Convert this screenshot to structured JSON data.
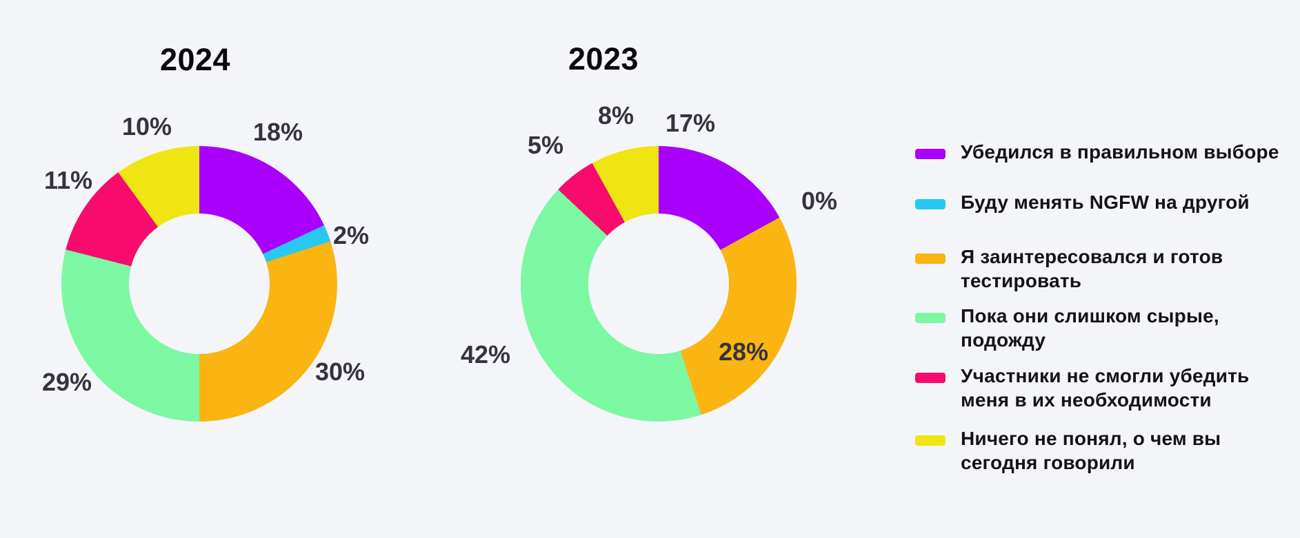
{
  "page": {
    "background": "#F4F5F9",
    "title_color": "#0B0B0E",
    "slice_label_color": "#34333E",
    "legend_text_color": "#131318"
  },
  "palette": [
    "#A800FA",
    "#29C7F2",
    "#FAB512",
    "#7DF8A2",
    "#F70C6E",
    "#EEE512"
  ],
  "categories": [
    "Убедился в правильном выборе",
    "Буду менять NGFW на другой",
    "Я заинтересовался и готов тестировать",
    "Пока они слишком сырые, подожду",
    "Участники не смогли убедить меня в их необходимости",
    "Ничего не понял, о чем вы сегодня говорили"
  ],
  "chart_data": [
    {
      "type": "pie",
      "variant": "donut",
      "title": "2024",
      "categories": [
        "Убедился в правильном выборе",
        "Буду менять NGFW на другой",
        "Я заинтересовался и готов тестировать",
        "Пока они слишком сырые, подожду",
        "Участники не смогли убедить меня в их необходимости",
        "Ничего не понял, о чем вы сегодня говорили"
      ],
      "values": [
        18,
        2,
        30,
        29,
        11,
        10
      ],
      "labels": [
        "18%",
        "2%",
        "30%",
        "29%",
        "11%",
        "10%"
      ],
      "colors": [
        "#A800FA",
        "#29C7F2",
        "#FAB512",
        "#7DF8A2",
        "#F70C6E",
        "#EEE512"
      ],
      "unit": "%",
      "start_angle_deg": 0,
      "direction": "clockwise",
      "inner_radius_ratio": 0.51,
      "legend_position": "right"
    },
    {
      "type": "pie",
      "variant": "donut",
      "title": "2023",
      "categories": [
        "Убедился в правильном выборе",
        "Буду менять NGFW на другой",
        "Я заинтересовался и готов тестировать",
        "Пока они слишком сырые, подожду",
        "Участники не смогли убедить меня в их необходимости",
        "Ничего не понял, о чем вы сегодня говорили"
      ],
      "values": [
        17,
        0,
        28,
        42,
        5,
        8
      ],
      "labels": [
        "17%",
        "0%",
        "28%",
        "42%",
        "5%",
        "8%"
      ],
      "colors": [
        "#A800FA",
        "#29C7F2",
        "#FAB512",
        "#7DF8A2",
        "#F70C6E",
        "#EEE512"
      ],
      "unit": "%",
      "start_angle_deg": 0,
      "direction": "clockwise",
      "inner_radius_ratio": 0.51,
      "legend_position": "right"
    }
  ],
  "legend": {
    "items": [
      {
        "color": "#A800FA",
        "lines": [
          "Убедился в правильном выборе"
        ]
      },
      {
        "color": "#29C7F2",
        "lines": [
          "Буду менять NGFW на другой"
        ]
      },
      {
        "color": "#FAB512",
        "lines": [
          "Я заинтересовался и готов",
          "тестировать"
        ]
      },
      {
        "color": "#7DF8A2",
        "lines": [
          "Пока они слишком сырые,",
          "подожду"
        ]
      },
      {
        "color": "#F70C6E",
        "lines": [
          "Участники не смогли убедить",
          "меня в их необходимости"
        ]
      },
      {
        "color": "#EEE512",
        "lines": [
          "Ничего не понял, о чем вы",
          "сегодня говорили"
        ]
      }
    ]
  }
}
